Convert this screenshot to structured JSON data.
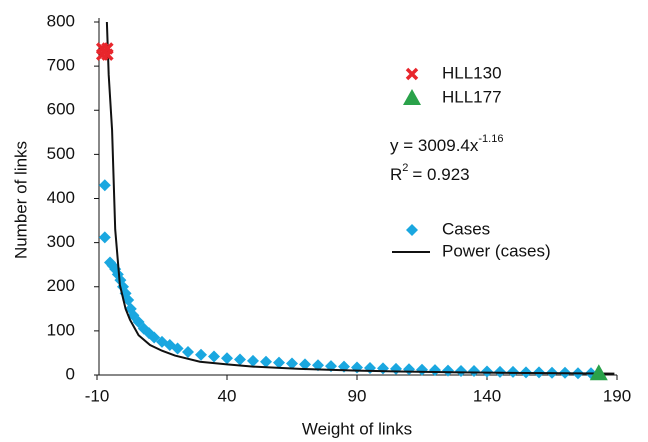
{
  "chart_data": {
    "type": "scatter",
    "xlabel": "Weight of links",
    "ylabel": "Number of links",
    "xlim": [
      -10,
      190
    ],
    "xticks": [
      -10,
      40,
      90,
      140,
      190
    ],
    "ylim": [
      0,
      800
    ],
    "yticks": [
      0,
      100,
      200,
      300,
      400,
      500,
      600,
      700,
      800
    ],
    "series": [
      {
        "name": "HLL130",
        "color": "#e8262c",
        "marker": "x",
        "x": [
          -8,
          -6,
          -8,
          -6
        ],
        "values": [
          740,
          740,
          726,
          726
        ]
      },
      {
        "name": "HLL177",
        "color": "#2aa24a",
        "marker": "triangle",
        "x": [
          183
        ],
        "values": [
          4
        ]
      },
      {
        "name": "Cases",
        "color": "#1aa7e0",
        "marker": "diamond",
        "x": [
          -7,
          -7,
          -5,
          -4,
          -3,
          -2,
          -1,
          0,
          1,
          2,
          3,
          4,
          6,
          8,
          10,
          12,
          15,
          18,
          21,
          25,
          30,
          35,
          40,
          45,
          50,
          55,
          60,
          65,
          70,
          75,
          80,
          85,
          90,
          95,
          100,
          105,
          110,
          115,
          120,
          125,
          130,
          135,
          140,
          145,
          150,
          155,
          160,
          165,
          170,
          175,
          180
        ],
        "values": [
          430,
          312,
          255,
          248,
          240,
          228,
          215,
          200,
          185,
          170,
          150,
          135,
          120,
          105,
          95,
          85,
          75,
          68,
          60,
          52,
          46,
          42,
          38,
          35,
          32,
          30,
          28,
          26,
          24,
          22,
          20,
          19,
          17,
          16,
          15,
          14,
          13,
          12,
          11,
          10,
          9,
          9,
          8,
          7,
          7,
          6,
          6,
          5,
          5,
          4,
          4
        ]
      },
      {
        "name": "Power (cases)",
        "color": "#111111",
        "marker": "line",
        "x": [
          -6.2,
          -5.5,
          -4.2,
          -3,
          -1.2,
          1,
          2.7,
          6,
          10.4,
          15,
          20,
          29.6,
          40,
          50,
          68,
          90,
          106.5,
          130,
          145,
          170,
          189
        ],
        "values": [
          800,
          680,
          555,
          330,
          204,
          150,
          125,
          90,
          68,
          55,
          44,
          30,
          24,
          19,
          14,
          10,
          8,
          6,
          5,
          4,
          3
        ]
      }
    ],
    "annotations": {
      "equation": {
        "text": "y = 3009.4x",
        "exponent": "-1.16"
      },
      "r2": {
        "base": "R",
        "exponent": "2",
        "rest": "= 0.923"
      }
    }
  }
}
